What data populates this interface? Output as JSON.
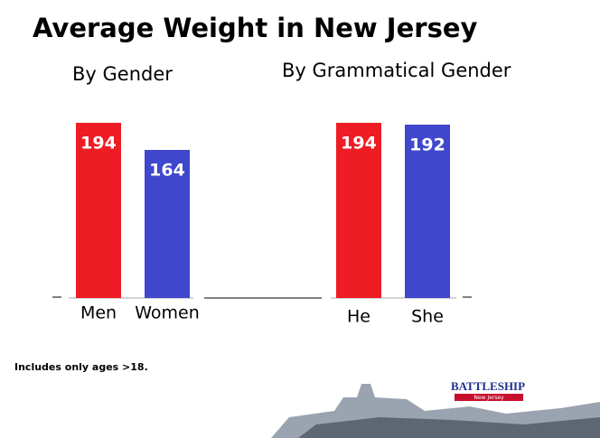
{
  "title": "Average Weight in New Jersey",
  "note": "Includes only ages >18.",
  "logo": {
    "name": "BATTLESHIP",
    "tagline": "New Jersey"
  },
  "chart_data": [
    {
      "type": "bar",
      "title": "By Gender",
      "categories": [
        "Men",
        "Women"
      ],
      "values": [
        194,
        164
      ],
      "colors": [
        "#ee1c24",
        "#3f48cc"
      ],
      "ylim": [
        0,
        200
      ]
    },
    {
      "type": "bar",
      "title": "By Grammatical Gender",
      "categories": [
        "He",
        "She"
      ],
      "values": [
        194,
        192
      ],
      "colors": [
        "#ee1c24",
        "#3f48cc"
      ],
      "ylim": [
        0,
        200
      ]
    }
  ]
}
